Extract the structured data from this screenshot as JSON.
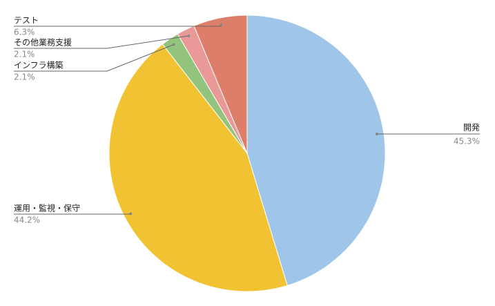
{
  "chart_data": {
    "type": "pie",
    "categories": [
      "開発",
      "運用・監視・保守",
      "インフラ構築",
      "その他業務支援",
      "テスト"
    ],
    "values": [
      45.3,
      44.2,
      2.1,
      2.1,
      6.3
    ],
    "value_labels": [
      "45.3%",
      "44.2%",
      "2.1%",
      "2.1%",
      "6.3%"
    ],
    "colors": [
      "#9fc5e8",
      "#f1c232",
      "#93c47d",
      "#ea9999",
      "#dd7e6b"
    ]
  }
}
